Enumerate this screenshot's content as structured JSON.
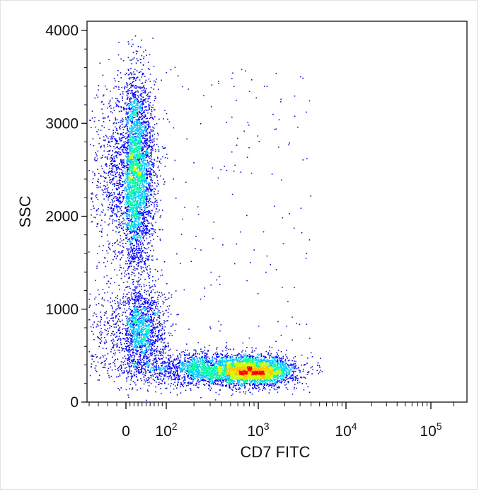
{
  "chart_data": {
    "type": "scatter",
    "title": "",
    "xlabel": "CD7 FITC",
    "ylabel": "SSC",
    "x_scale": "biexponential",
    "y_scale": "linear",
    "ylim": [
      0,
      4000
    ],
    "y_ticks": [
      "0",
      "1000",
      "2000",
      "3000",
      "4000"
    ],
    "x_ticks": [
      {
        "value": 0,
        "label": "0",
        "exp": ""
      },
      {
        "value": 100,
        "label": "10",
        "exp": "2"
      },
      {
        "value": 1000,
        "label": "10",
        "exp": "3"
      },
      {
        "value": 10000,
        "label": "10",
        "exp": "4"
      },
      {
        "value": 100000,
        "label": "10",
        "exp": "5"
      }
    ],
    "grid": false,
    "colormap": [
      "#1010c8",
      "#0000ff",
      "#00c8ff",
      "#00ffa0",
      "#c8ff00",
      "#ffc800",
      "#ff0000"
    ],
    "populations": [
      {
        "x_center": 20,
        "x_spread": 25,
        "y_center": 2450,
        "y_spread": 520,
        "count": 4200
      },
      {
        "x_center": 30,
        "x_spread": 35,
        "y_center": 780,
        "y_spread": 230,
        "count": 1700
      },
      {
        "x_center": 850,
        "x_spread": 500,
        "y_center": 340,
        "y_spread": 80,
        "count": 3300
      },
      {
        "x_center": 180,
        "x_spread": 120,
        "y_center": 360,
        "y_spread": 90,
        "count": 1300
      }
    ]
  }
}
